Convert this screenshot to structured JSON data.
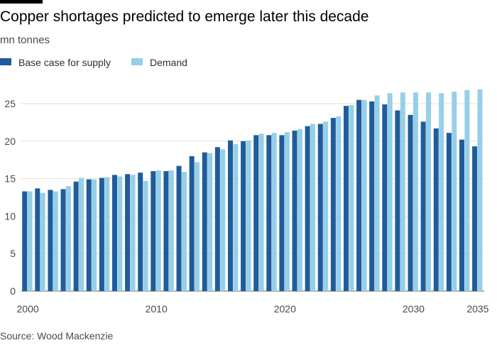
{
  "chart_data": {
    "type": "bar",
    "title": "Copper shortages predicted to emerge later this decade",
    "subtitle": "mn tonnes",
    "xlabel": "",
    "ylabel": "",
    "ylim": [
      0,
      27
    ],
    "yticks": [
      0,
      5,
      10,
      15,
      20,
      25
    ],
    "xtick_labels": [
      "2000",
      "2010",
      "2020",
      "2030",
      "2035"
    ],
    "legend_position": "top-left",
    "grid": true,
    "categories": [
      2000,
      2001,
      2002,
      2003,
      2004,
      2005,
      2006,
      2007,
      2008,
      2009,
      2010,
      2011,
      2012,
      2013,
      2014,
      2015,
      2016,
      2017,
      2018,
      2019,
      2020,
      2021,
      2022,
      2023,
      2024,
      2025,
      2026,
      2027,
      2028,
      2029,
      2030,
      2031,
      2032,
      2033,
      2034,
      2035
    ],
    "series": [
      {
        "name": "Base case for supply",
        "color": "#1f5c99",
        "values": [
          13.3,
          13.7,
          13.5,
          13.6,
          14.6,
          14.9,
          15.1,
          15.5,
          15.6,
          15.8,
          16.0,
          16.0,
          16.7,
          18.0,
          18.5,
          19.2,
          20.1,
          20.0,
          20.8,
          20.8,
          20.8,
          21.4,
          22.0,
          22.3,
          23.1,
          24.7,
          25.5,
          25.3,
          24.9,
          24.1,
          23.5,
          22.6,
          21.7,
          21.1,
          20.2,
          19.3
        ]
      },
      {
        "name": "Demand",
        "color": "#96cfe8",
        "values": [
          13.3,
          13.1,
          13.3,
          14.0,
          15.1,
          14.9,
          15.2,
          15.3,
          15.5,
          14.7,
          16.1,
          16.1,
          15.9,
          17.2,
          18.4,
          18.9,
          19.6,
          20.1,
          21.0,
          21.1,
          21.2,
          21.6,
          22.3,
          22.6,
          23.3,
          24.8,
          25.5,
          26.1,
          26.4,
          26.5,
          26.5,
          26.5,
          26.4,
          26.6,
          26.8,
          26.9
        ]
      }
    ]
  },
  "source": "Source: Wood Mackenzie"
}
